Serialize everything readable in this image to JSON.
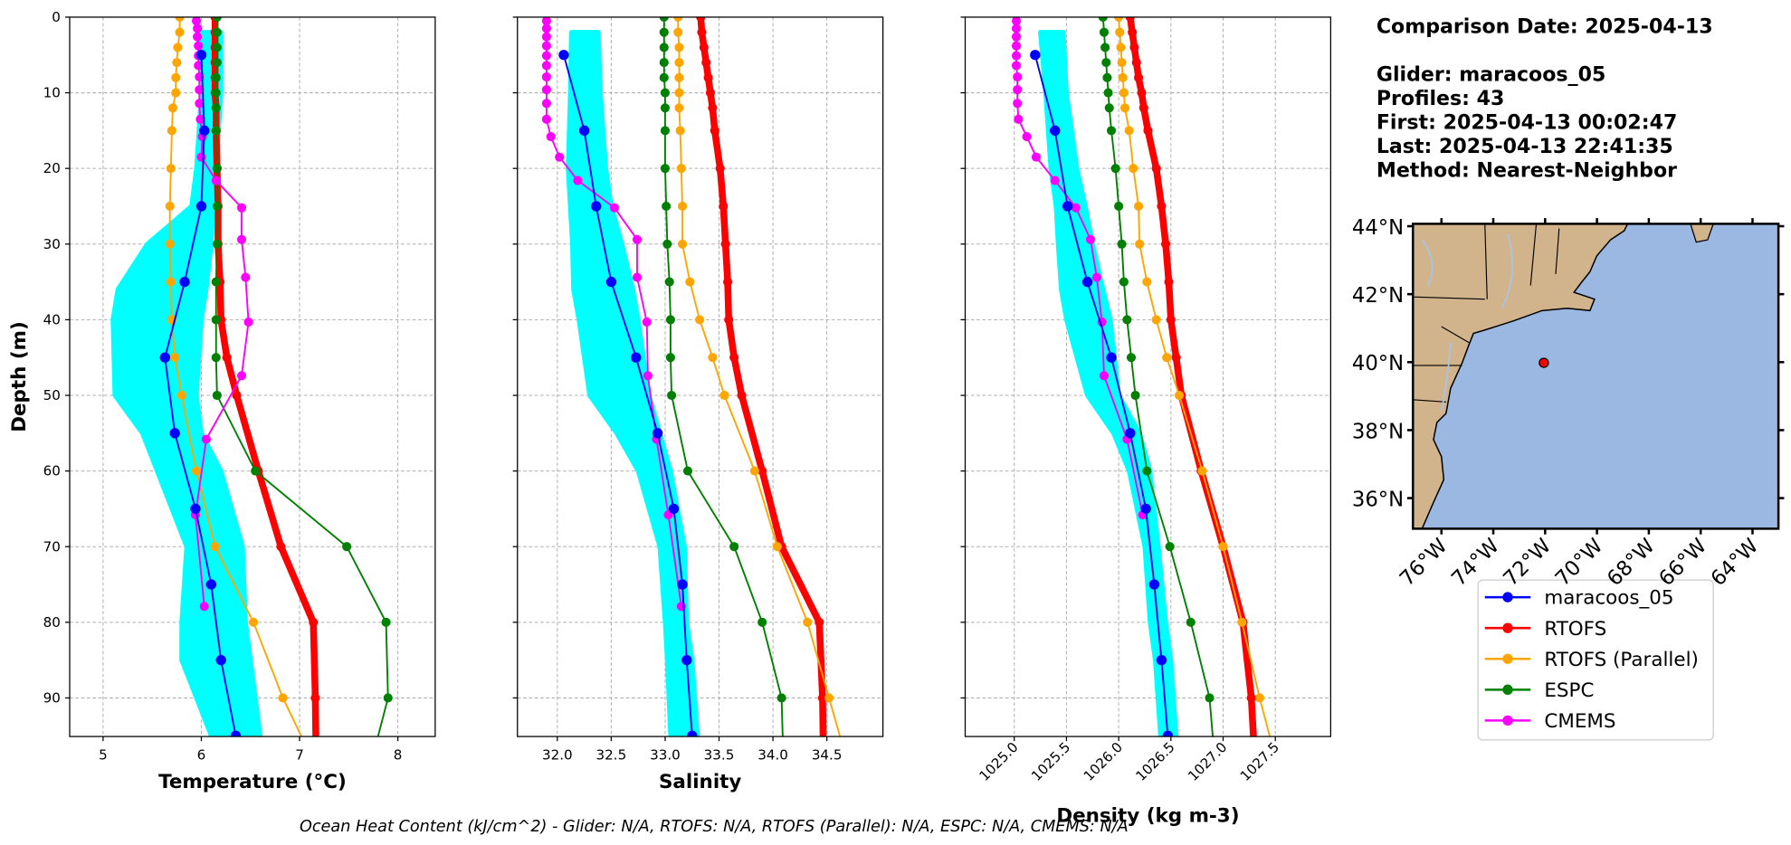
{
  "header": {
    "comparison_date": "Comparison Date: 2025-04-13",
    "details": [
      "Glider: maracoos_05",
      "Profiles: 43",
      "First: 2025-04-13 00:02:47",
      "Last: 2025-04-13 22:41:35",
      "Method: Nearest-Neighbor"
    ]
  },
  "footer": "Ocean Heat Content (kJ/cm^2) - Glider: N/A,  RTOFS: N/A,  RTOFS (Parallel): N/A,  ESPC: N/A,  CMEMS: N/A",
  "legend": {
    "entries": [
      {
        "name": "maracoos_05",
        "color": "#0000ff",
        "line_width": 1.5
      },
      {
        "name": "RTOFS",
        "color": "#ff0000",
        "line_width": 6
      },
      {
        "name": "RTOFS (Parallel)",
        "color": "#ffa500",
        "line_width": 1.5
      },
      {
        "name": "ESPC",
        "color": "#008000",
        "line_width": 1.5
      },
      {
        "name": "CMEMS",
        "color": "#ff00ff",
        "line_width": 1.5
      }
    ]
  },
  "chart_data": [
    {
      "type": "line",
      "y_label": "Depth (m)",
      "x_label": "Temperature (°C)",
      "xlim": [
        4.66,
        8.38
      ],
      "xticks": [
        5,
        6,
        7,
        8
      ],
      "ylim": [
        95.1,
        0
      ],
      "yticks": [
        0,
        10,
        20,
        30,
        40,
        50,
        60,
        70,
        80,
        90
      ],
      "grid": true,
      "envelope": {
        "color": "#00ffff",
        "depth": [
          2,
          10,
          20,
          25,
          30,
          36,
          40,
          50,
          55,
          60,
          70,
          80,
          85,
          95
        ],
        "min": [
          6.0,
          6.0,
          5.95,
          5.9,
          5.45,
          5.15,
          5.1,
          5.12,
          5.4,
          5.55,
          5.85,
          5.8,
          5.8,
          6.1
        ],
        "max": [
          6.2,
          6.2,
          6.15,
          6.12,
          6.1,
          6.05,
          6.0,
          5.95,
          6.0,
          6.2,
          6.42,
          6.45,
          6.5,
          6.6
        ]
      },
      "series": [
        {
          "depth": [
            5,
            15,
            25,
            35,
            45,
            55,
            65,
            75,
            85,
            95
          ],
          "values": [
            6.0,
            6.03,
            6.0,
            5.83,
            5.63,
            5.73,
            5.94,
            6.1,
            6.2,
            6.35
          ]
        },
        {
          "depth": [
            0,
            2,
            4,
            6,
            8,
            10,
            12,
            15,
            20,
            25,
            30,
            35,
            40,
            45,
            50,
            60,
            70,
            80,
            90,
            100
          ],
          "values": [
            6.14,
            6.14,
            6.14,
            6.14,
            6.14,
            6.14,
            6.15,
            6.15,
            6.16,
            6.17,
            6.17,
            6.19,
            6.2,
            6.26,
            6.36,
            6.58,
            6.81,
            7.14,
            7.16,
            7.17
          ]
        },
        {
          "depth": [
            0,
            2,
            4,
            6,
            8,
            10,
            12,
            15,
            20,
            25,
            30,
            35,
            40,
            45,
            50,
            60,
            70,
            80,
            90,
            100
          ],
          "values": [
            5.78,
            5.78,
            5.76,
            5.75,
            5.74,
            5.74,
            5.71,
            5.7,
            5.69,
            5.68,
            5.68,
            5.69,
            5.7,
            5.73,
            5.8,
            5.95,
            6.14,
            6.53,
            6.83,
            7.2
          ]
        },
        {
          "depth": [
            0,
            2,
            4,
            6,
            8,
            10,
            12,
            15,
            20,
            25,
            30,
            35,
            40,
            45,
            50,
            60,
            70,
            80,
            90,
            100
          ],
          "values": [
            6.16,
            6.16,
            6.16,
            6.16,
            6.15,
            6.15,
            6.15,
            6.15,
            6.16,
            6.16,
            6.16,
            6.15,
            6.15,
            6.15,
            6.16,
            6.55,
            7.48,
            7.88,
            7.9,
            7.7
          ]
        },
        {
          "depth": [
            0.5,
            1.5,
            2.6,
            3.8,
            5.1,
            6.4,
            7.9,
            9.6,
            11.4,
            13.5,
            15.8,
            18.5,
            21.6,
            25.2,
            29.4,
            34.4,
            40.3,
            47.4,
            55.8,
            65.8,
            77.9
          ],
          "values": [
            5.95,
            5.96,
            5.96,
            5.97,
            5.97,
            5.97,
            5.98,
            5.98,
            5.98,
            5.99,
            6.01,
            6.0,
            6.15,
            6.41,
            6.41,
            6.45,
            6.48,
            6.41,
            6.05,
            5.94,
            6.03
          ]
        }
      ]
    },
    {
      "type": "line",
      "x_label": "Salinity",
      "xlim": [
        31.63,
        35.02
      ],
      "xticks": [
        {
          "value": 32,
          "label": "32.0"
        },
        32.5,
        {
          "value": 33,
          "label": "33.0"
        },
        33.5,
        {
          "value": 34,
          "label": "34.0"
        },
        34.5
      ],
      "ylim": [
        95.1,
        0
      ],
      "yticks": [
        0,
        10,
        20,
        30,
        40,
        50,
        60,
        70,
        80,
        90
      ],
      "grid": true,
      "envelope": {
        "color": "#00ffff",
        "depth": [
          2,
          10,
          20,
          25,
          30,
          36,
          40,
          50,
          55,
          60,
          70,
          80,
          85,
          95
        ],
        "min": [
          32.13,
          32.12,
          32.1,
          32.12,
          32.14,
          32.15,
          32.2,
          32.3,
          32.55,
          32.75,
          32.95,
          33.0,
          33.02,
          33.05
        ],
        "max": [
          32.38,
          32.4,
          32.45,
          32.5,
          32.6,
          32.7,
          32.75,
          32.85,
          32.95,
          33.05,
          33.18,
          33.2,
          33.25,
          33.3
        ]
      },
      "series": [
        {
          "depth": [
            5,
            15,
            25,
            35,
            45,
            55,
            65,
            75,
            85,
            95
          ],
          "values": [
            32.06,
            32.25,
            32.36,
            32.5,
            32.73,
            32.93,
            33.08,
            33.16,
            33.2,
            33.25
          ]
        },
        {
          "depth": [
            0,
            2,
            4,
            6,
            8,
            10,
            12,
            15,
            20,
            25,
            30,
            35,
            40,
            45,
            50,
            60,
            70,
            80,
            90,
            100
          ],
          "values": [
            33.33,
            33.34,
            33.36,
            33.38,
            33.4,
            33.42,
            33.44,
            33.46,
            33.51,
            33.54,
            33.56,
            33.58,
            33.59,
            33.64,
            33.71,
            33.9,
            34.08,
            34.43,
            34.46,
            34.47
          ]
        },
        {
          "depth": [
            0,
            2,
            4,
            6,
            8,
            10,
            12,
            15,
            20,
            25,
            30,
            35,
            40,
            45,
            50,
            60,
            70,
            80,
            90,
            100
          ],
          "values": [
            33.12,
            33.12,
            33.13,
            33.13,
            33.13,
            33.13,
            33.13,
            33.14,
            33.15,
            33.16,
            33.16,
            33.23,
            33.32,
            33.44,
            33.55,
            33.83,
            34.04,
            34.32,
            34.52,
            34.72
          ]
        },
        {
          "depth": [
            0,
            2,
            4,
            6,
            8,
            10,
            12,
            15,
            20,
            25,
            30,
            35,
            40,
            45,
            50,
            60,
            70,
            80,
            90,
            100
          ],
          "values": [
            32.99,
            32.99,
            32.99,
            32.99,
            32.99,
            33.0,
            33.0,
            33.0,
            33.0,
            33.01,
            33.02,
            33.04,
            33.05,
            33.05,
            33.06,
            33.21,
            33.64,
            33.9,
            34.08,
            34.1
          ]
        },
        {
          "depth": [
            0.5,
            1.5,
            2.6,
            3.8,
            5.1,
            6.4,
            7.9,
            9.6,
            11.4,
            13.5,
            15.8,
            18.5,
            21.6,
            25.2,
            29.4,
            34.4,
            40.3,
            47.4,
            55.8,
            65.8,
            77.9
          ],
          "values": [
            31.9,
            31.9,
            31.9,
            31.9,
            31.9,
            31.9,
            31.9,
            31.9,
            31.9,
            31.9,
            31.94,
            32.02,
            32.19,
            32.53,
            32.74,
            32.74,
            32.83,
            32.84,
            32.92,
            33.03,
            33.15
          ]
        }
      ]
    },
    {
      "type": "line",
      "x_label": "Density (kg m-3)",
      "xtick_rotation": 45,
      "xlim": [
        1024.53,
        1028.03
      ],
      "xticks": [
        {
          "value": 1025,
          "label": "1025.0"
        },
        1025.5,
        {
          "value": 1026,
          "label": "1026.0"
        },
        1026.5,
        {
          "value": 1027,
          "label": "1027.0"
        },
        1027.5
      ],
      "ylim": [
        95.1,
        0
      ],
      "yticks": [
        0,
        10,
        20,
        30,
        40,
        50,
        60,
        70,
        80,
        90
      ],
      "grid": true,
      "envelope": {
        "color": "#00ffff",
        "depth": [
          2,
          10,
          20,
          25,
          30,
          36,
          40,
          50,
          55,
          60,
          70,
          80,
          85,
          95
        ],
        "min": [
          1025.25,
          1025.3,
          1025.35,
          1025.4,
          1025.42,
          1025.45,
          1025.5,
          1025.7,
          1025.95,
          1026.1,
          1026.25,
          1026.3,
          1026.35,
          1026.4
        ],
        "max": [
          1025.47,
          1025.5,
          1025.6,
          1025.68,
          1025.75,
          1025.85,
          1025.92,
          1026.0,
          1026.2,
          1026.3,
          1026.38,
          1026.45,
          1026.5,
          1026.55
        ]
      },
      "series": [
        {
          "depth": [
            5,
            15,
            25,
            35,
            45,
            55,
            65,
            75,
            85,
            95
          ],
          "values": [
            1025.2,
            1025.39,
            1025.51,
            1025.7,
            1025.93,
            1026.11,
            1026.26,
            1026.34,
            1026.41,
            1026.47
          ]
        },
        {
          "depth": [
            0,
            2,
            4,
            6,
            8,
            10,
            12,
            15,
            20,
            25,
            30,
            35,
            40,
            45,
            50,
            60,
            70,
            80,
            90,
            100
          ],
          "values": [
            1026.11,
            1026.13,
            1026.15,
            1026.17,
            1026.19,
            1026.22,
            1026.24,
            1026.28,
            1026.36,
            1026.41,
            1026.45,
            1026.48,
            1026.5,
            1026.55,
            1026.6,
            1026.79,
            1027.0,
            1027.19,
            1027.27,
            1027.31
          ]
        },
        {
          "depth": [
            0,
            2,
            4,
            6,
            8,
            10,
            12,
            15,
            20,
            25,
            30,
            35,
            40,
            45,
            50,
            60,
            70,
            80,
            90,
            100
          ],
          "values": [
            1026.0,
            1026.01,
            1026.02,
            1026.03,
            1026.04,
            1026.05,
            1026.06,
            1026.1,
            1026.14,
            1026.19,
            1026.2,
            1026.27,
            1026.36,
            1026.46,
            1026.58,
            1026.8,
            1027.0,
            1027.18,
            1027.35,
            1027.54
          ]
        },
        {
          "depth": [
            0,
            2,
            4,
            6,
            8,
            10,
            12,
            15,
            20,
            25,
            30,
            35,
            40,
            45,
            50,
            60,
            70,
            80,
            90,
            100
          ],
          "values": [
            1025.85,
            1025.86,
            1025.87,
            1025.88,
            1025.89,
            1025.9,
            1025.91,
            1025.93,
            1025.97,
            1026.0,
            1026.03,
            1026.05,
            1026.08,
            1026.12,
            1026.16,
            1026.27,
            1026.49,
            1026.69,
            1026.87,
            1026.93
          ]
        },
        {
          "depth": [
            0.5,
            1.5,
            2.6,
            3.8,
            5.1,
            6.4,
            7.9,
            9.6,
            11.4,
            13.5,
            15.8,
            18.5,
            21.6,
            25.2,
            29.4,
            34.4,
            40.3,
            47.4,
            55.8,
            65.8,
            77.9
          ],
          "values": [
            1025.02,
            1025.02,
            1025.02,
            1025.02,
            1025.02,
            1025.02,
            1025.03,
            1025.03,
            1025.03,
            1025.04,
            1025.12,
            1025.21,
            1025.39,
            1025.59,
            1025.73,
            1025.79,
            1025.84,
            1025.86,
            1026.08,
            1026.23,
            null
          ]
        }
      ]
    },
    {
      "type": "map",
      "xlim": [
        -77.1,
        -63.0
      ],
      "ylim": [
        35.1,
        44.07
      ],
      "xticks": [
        {
          "value": -76,
          "label": "76°W"
        },
        {
          "value": -74,
          "label": "74°W"
        },
        {
          "value": -72,
          "label": "72°W"
        },
        {
          "value": -70,
          "label": "70°W"
        },
        {
          "value": -68,
          "label": "68°W"
        },
        {
          "value": -66,
          "label": "66°W"
        },
        {
          "value": -64,
          "label": "64°W"
        }
      ],
      "yticks": [
        {
          "value": 36,
          "label": "36°N"
        },
        {
          "value": 38,
          "label": "38°N"
        },
        {
          "value": 40,
          "label": "40°N"
        },
        {
          "value": 42,
          "label": "42°N"
        },
        {
          "value": 44,
          "label": "44°N"
        }
      ],
      "points": {
        "color": "#ff0000",
        "lon": [
          -72.05
        ],
        "lat": [
          39.98
        ]
      }
    }
  ]
}
